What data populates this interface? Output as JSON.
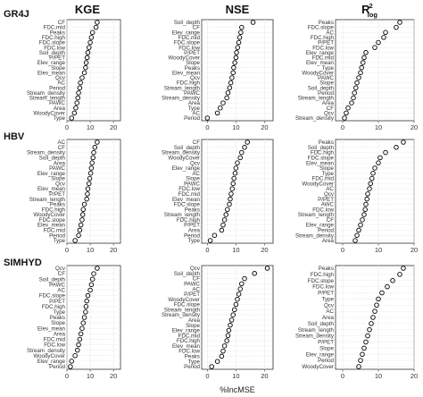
{
  "figure": {
    "column_titles": [
      "KGE",
      "NSE",
      "R"
    ],
    "rlog_title": {
      "base": "R",
      "superscript": "2",
      "subscript": "log"
    },
    "row_titles": [
      "GR4J",
      "HBV",
      "SIMHYD"
    ],
    "x_axis_title": "%IncMSE"
  },
  "chart_data": [
    {
      "type": "scatter",
      "model": "GR4J",
      "metric": "KGE",
      "xlim": [
        0,
        23
      ],
      "xticks": [
        0,
        10,
        20
      ],
      "grid": true,
      "labels": [
        "CF",
        "FDC.mid",
        "Peaks",
        "FDC.high",
        "FDC.slope",
        "FDC.low",
        "Soil_depth",
        "P/PET",
        "Elev_range",
        "Slope",
        "Elev_mean",
        "Qcv",
        "AC",
        "Period",
        "Stream_density",
        "Stream_length",
        "PAWC",
        "Area",
        "WoodyCover",
        "Type"
      ],
      "values": [
        13,
        12.5,
        11,
        10.5,
        10,
        9.5,
        9,
        8.7,
        8.3,
        8,
        7.5,
        6.5,
        5.8,
        5.5,
        5,
        4.7,
        4.3,
        3.8,
        3.2,
        2
      ]
    },
    {
      "type": "scatter",
      "model": "GR4J",
      "metric": "NSE",
      "xlim": [
        -2,
        23
      ],
      "xticks": [
        0,
        10,
        20
      ],
      "grid": true,
      "labels": [
        "Soil_depth",
        "CF",
        "Elev_range",
        "FDC.mid",
        "FDC.slope",
        "FDC.low",
        "P/PET",
        "WoodyCover",
        "Slope",
        "Peaks",
        "Elev_mean",
        "Qcv",
        "FDC.high",
        "Stream_length",
        "PAWC",
        "Stream_density",
        "Area",
        "Type",
        "AC",
        "Period"
      ],
      "values": [
        16,
        12,
        11.7,
        11.3,
        11,
        10.6,
        10.2,
        10,
        9.6,
        9.2,
        9,
        8.6,
        8.2,
        7.8,
        7.2,
        6.8,
        5.5,
        4.5,
        3.5,
        0
      ]
    },
    {
      "type": "scatter",
      "model": "GR4J",
      "metric": "R2log",
      "xlim": [
        -2,
        20
      ],
      "xticks": [
        0,
        10,
        20
      ],
      "grid": true,
      "labels": [
        "Peaks",
        "FDC.slope",
        "AC",
        "FDC.high",
        "P/PET",
        "FDC.low",
        "Elev_range",
        "FDC.mid",
        "Elev_mean",
        "Type",
        "WoodyCover",
        "PAWC",
        "Slope",
        "Soil_depth",
        "Period",
        "Stream_length",
        "Area",
        "CF",
        "Qcv",
        "Stream_density"
      ],
      "values": [
        16,
        15,
        12,
        11.5,
        10,
        9,
        6.5,
        6,
        5.7,
        5.3,
        5,
        4.5,
        4,
        3.7,
        3.3,
        3,
        2.5,
        1.5,
        1,
        0.5
      ]
    },
    {
      "type": "scatter",
      "model": "HBV",
      "metric": "KGE",
      "xlim": [
        0,
        23
      ],
      "xticks": [
        0,
        10,
        20
      ],
      "grid": true,
      "labels": [
        "AC",
        "CF",
        "Stream_density",
        "Soil_depth",
        "Area",
        "PAWC",
        "Elev_range",
        "Slope",
        "Qcv",
        "Elev_mean",
        "P/PET",
        "Stream_length",
        "Peaks",
        "FDC.high",
        "WoodyCover",
        "FDC.slope",
        "Elev_mean",
        "FDC.mid",
        "Period",
        "Type"
      ],
      "values": [
        13,
        12,
        11.5,
        11.2,
        10.8,
        10.5,
        10.2,
        9.8,
        9.5,
        9,
        8.8,
        8.5,
        7.5,
        7,
        6.8,
        6.5,
        6,
        5.5,
        5,
        3.5
      ]
    },
    {
      "type": "scatter",
      "model": "HBV",
      "metric": "NSE",
      "xlim": [
        -2,
        23
      ],
      "xticks": [
        0,
        10,
        20
      ],
      "grid": true,
      "labels": [
        "CF",
        "Soil_depth",
        "Stream_density",
        "WoodyCover",
        "Qcv",
        "Elev_range",
        "AC",
        "Slope",
        "PAWC",
        "FDC.low",
        "FDC.mid",
        "Elev_mean",
        "FDC.slope",
        "Peaks",
        "Stream_length",
        "FDC.high",
        "P/PET",
        "Area",
        "Period",
        "Type"
      ],
      "values": [
        14,
        13,
        12,
        11.5,
        10.5,
        10,
        9.7,
        9.3,
        9,
        8.7,
        8.3,
        8,
        7.7,
        7,
        6.5,
        6,
        5.5,
        5,
        2.5,
        1
      ]
    },
    {
      "type": "scatter",
      "model": "HBV",
      "metric": "R2log",
      "xlim": [
        -2,
        20
      ],
      "xticks": [
        0,
        10,
        20
      ],
      "grid": true,
      "labels": [
        "Peaks",
        "Soil_depth",
        "FDC.high",
        "FDC.slope",
        "Elev_mean",
        "Slope",
        "Type",
        "FDC.mid",
        "WoodyCover",
        "AC",
        "Qcv",
        "P/PET",
        "AWC",
        "FDC.low",
        "Stream_length",
        "CF",
        "Elev_range",
        "Period",
        "Stream_density",
        "Area"
      ],
      "values": [
        17,
        15,
        12,
        10.5,
        10,
        9,
        8.5,
        8.2,
        7.8,
        7.5,
        7,
        6.8,
        6.5,
        6.3,
        6,
        5.5,
        5,
        4.5,
        4,
        3.5
      ]
    },
    {
      "type": "scatter",
      "model": "SIMHYD",
      "metric": "KGE",
      "xlim": [
        0,
        23
      ],
      "xticks": [
        0,
        10,
        20
      ],
      "grid": true,
      "labels": [
        "Qcv",
        "CF",
        "Soil_depth",
        "PAWC",
        "AC",
        "FDC.slope",
        "P/PET",
        "FDC.high",
        "Type",
        "Peaks",
        "Slope",
        "Elev_mean",
        "Area",
        "FDC.mid",
        "FDC.low",
        "Stream_density",
        "WoodyCover",
        "Elev_range",
        "Period"
      ],
      "values": [
        13,
        11.5,
        11,
        10.5,
        10,
        9,
        8.5,
        8.2,
        8,
        7.5,
        7,
        6.5,
        6,
        5.5,
        5,
        4.5,
        3.5,
        2,
        1.5
      ]
    },
    {
      "type": "scatter",
      "model": "SIMHYD",
      "metric": "NSE",
      "xlim": [
        -2,
        23
      ],
      "xticks": [
        0,
        10,
        20
      ],
      "grid": true,
      "labels": [
        "Qcv",
        "Soil_depth",
        "CF",
        "PAWC",
        "AC",
        "P/PET",
        "WoodyCover",
        "FDC.slope",
        "Stream_length",
        "Stream_density",
        "Area",
        "Slope",
        "Elev_range",
        "FDC.mid",
        "FDC.high",
        "Elev_mean",
        "FDC.low",
        "Peaks",
        "Type",
        "Period"
      ],
      "values": [
        21,
        16.5,
        13,
        12,
        11.5,
        11,
        10.5,
        10,
        9.5,
        9,
        8.5,
        8,
        7.5,
        7.2,
        6.8,
        6,
        5.5,
        5,
        3.5,
        1.5
      ]
    },
    {
      "type": "scatter",
      "model": "SIMHYD",
      "metric": "R2log",
      "xlim": [
        -2,
        20
      ],
      "xticks": [
        0,
        10,
        20
      ],
      "grid": true,
      "labels": [
        "Peaks",
        "FDC.high",
        "FDC.slope",
        "FDC.low",
        "P/PET",
        "Type",
        "Qcv",
        "AC",
        "Area",
        "Soil_depth",
        "Stream_length",
        "Stream_density",
        "P/PET",
        "Slope",
        "Elev_range",
        "Period",
        "WoodyCover"
      ],
      "values": [
        17,
        16,
        14,
        12.5,
        11,
        10,
        9.5,
        9,
        8.5,
        8,
        7.5,
        7,
        6.5,
        6,
        5.5,
        5,
        4.5
      ]
    }
  ]
}
